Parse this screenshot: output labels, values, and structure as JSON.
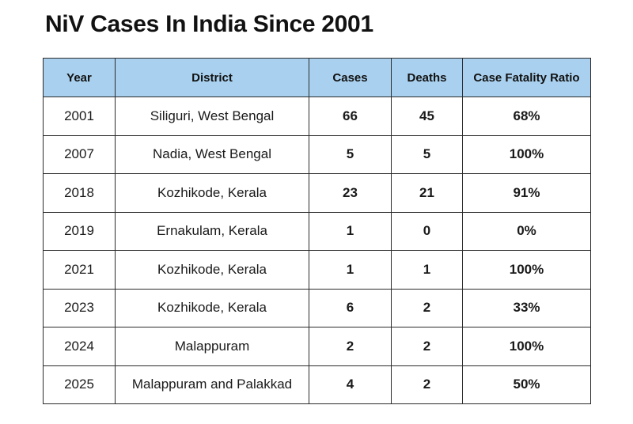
{
  "title": "NiV Cases In India Since 2001",
  "table": {
    "headers": [
      "Year",
      "District",
      "Cases",
      "Deaths",
      "Case Fatality Ratio"
    ],
    "rows": [
      {
        "year": "2001",
        "district": "Siliguri, West Bengal",
        "cases": "66",
        "deaths": "45",
        "cfr": "68%"
      },
      {
        "year": "2007",
        "district": "Nadia, West Bengal",
        "cases": "5",
        "deaths": "5",
        "cfr": "100%"
      },
      {
        "year": "2018",
        "district": "Kozhikode, Kerala",
        "cases": "23",
        "deaths": "21",
        "cfr": "91%"
      },
      {
        "year": "2019",
        "district": "Ernakulam, Kerala",
        "cases": "1",
        "deaths": "0",
        "cfr": "0%"
      },
      {
        "year": "2021",
        "district": "Kozhikode, Kerala",
        "cases": "1",
        "deaths": "1",
        "cfr": "100%"
      },
      {
        "year": "2023",
        "district": "Kozhikode, Kerala",
        "cases": "6",
        "deaths": "2",
        "cfr": "33%"
      },
      {
        "year": "2024",
        "district": "Malappuram",
        "cases": "2",
        "deaths": "2",
        "cfr": "100%"
      },
      {
        "year": "2025",
        "district": "Malappuram and Palakkad",
        "cases": "4",
        "deaths": "2",
        "cfr": "50%"
      }
    ]
  },
  "colors": {
    "header_background": "#a9d1ef",
    "border": "#2b2b2b",
    "text": "#111111"
  }
}
